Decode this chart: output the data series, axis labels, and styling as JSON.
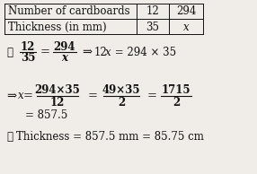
{
  "bg_color": "#f0ede8",
  "table": {
    "row1": [
      "Number of cardboards",
      "12",
      "294"
    ],
    "row2": [
      "Thickness (in mm)",
      "35",
      "x"
    ]
  },
  "font_size": 8.5,
  "text_color": "#111111",
  "figsize": [
    2.86,
    1.94
  ],
  "dpi": 100
}
